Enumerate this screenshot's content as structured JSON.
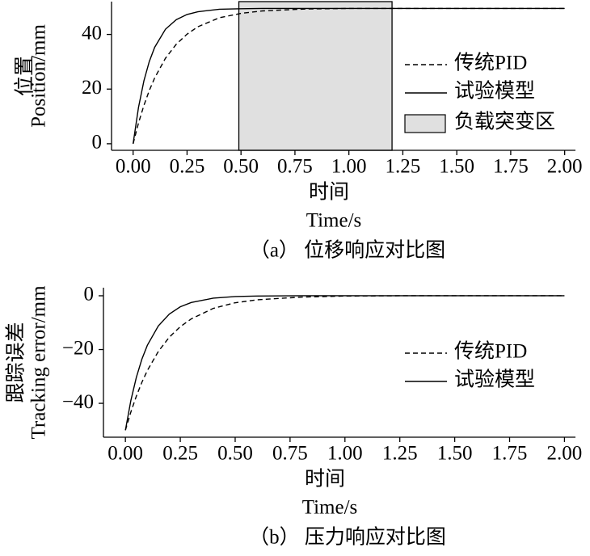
{
  "chart_data": [
    {
      "type": "line",
      "xlabel": [
        "时间",
        "Time/s"
      ],
      "ylabel": [
        "位置",
        "Position/mm"
      ],
      "caption": "（a） 位移响应对比图",
      "x": [
        0,
        0.025,
        0.05,
        0.075,
        0.1,
        0.15,
        0.2,
        0.25,
        0.3,
        0.4,
        0.5,
        0.6,
        0.8,
        1.0,
        1.25,
        1.5,
        1.75,
        2.0
      ],
      "series": [
        {
          "name": "传统PID",
          "color": "#000000",
          "dash": true,
          "values": [
            0,
            7.6,
            14.0,
            19.5,
            24.1,
            31.3,
            36.4,
            40.1,
            42.8,
            46.1,
            47.7,
            48.6,
            49.3,
            49.5,
            49.5,
            49.5,
            49.5,
            49.5
          ]
        },
        {
          "name": "试验模型",
          "color": "#000000",
          "dash": false,
          "values": [
            0,
            13.3,
            23.0,
            30.1,
            35.3,
            41.9,
            45.4,
            47.3,
            48.3,
            49.2,
            49.4,
            49.5,
            49.5,
            49.5,
            49.5,
            49.5,
            49.5,
            49.5
          ]
        }
      ],
      "shaded_region": {
        "name": "负载突变区",
        "color": "#e0e0e0",
        "x": [
          0.49,
          1.2
        ]
      },
      "xlim": [
        -0.1,
        2.05
      ],
      "ylim": [
        -2.4,
        52
      ],
      "xticks": [
        {
          "value": 0,
          "label": "0.00"
        },
        {
          "value": 0.25,
          "label": "0.25"
        },
        {
          "value": 0.5,
          "label": "0.50"
        },
        {
          "value": 0.75,
          "label": "0.75"
        },
        {
          "value": 1.0,
          "label": "1.00"
        },
        {
          "value": 1.25,
          "label": "1.25"
        },
        {
          "value": 1.5,
          "label": "1.50"
        },
        {
          "value": 1.75,
          "label": "1.75"
        },
        {
          "value": 2.0,
          "label": "2.00"
        }
      ],
      "yticks": [
        0,
        20,
        40
      ],
      "grid": false,
      "legend": "right"
    },
    {
      "type": "line",
      "xlabel": [
        "时间",
        "Time/s"
      ],
      "ylabel": [
        "跟踪误差",
        "Tracking error/mm"
      ],
      "caption": "（b） 压力响应对比图",
      "x": [
        0,
        0.025,
        0.05,
        0.075,
        0.1,
        0.15,
        0.2,
        0.25,
        0.3,
        0.4,
        0.5,
        0.6,
        0.8,
        1.0,
        1.25,
        1.5,
        1.75,
        2.0
      ],
      "series": [
        {
          "name": "传统PID",
          "color": "#000000",
          "dash": true,
          "values": [
            -50,
            -43.2,
            -37.3,
            -32.2,
            -27.8,
            -20.7,
            -15.4,
            -11.5,
            -8.6,
            -4.7,
            -2.6,
            -1.5,
            -0.5,
            -0.1,
            0,
            0,
            0,
            0
          ]
        },
        {
          "name": "试验模型",
          "color": "#000000",
          "dash": false,
          "values": [
            -50,
            -38.9,
            -30.3,
            -23.6,
            -18.4,
            -11.2,
            -6.8,
            -4.1,
            -2.5,
            -0.9,
            -0.3,
            -0.1,
            0,
            0,
            0,
            0,
            0,
            0
          ]
        }
      ],
      "xlim": [
        -0.1,
        2.05
      ],
      "ylim": [
        -52.6,
        3
      ],
      "xticks": [
        {
          "value": 0,
          "label": "0.00"
        },
        {
          "value": 0.25,
          "label": "0.25"
        },
        {
          "value": 0.5,
          "label": "0.50"
        },
        {
          "value": 0.75,
          "label": "0.75"
        },
        {
          "value": 1.0,
          "label": "1.00"
        },
        {
          "value": 1.25,
          "label": "1.25"
        },
        {
          "value": 1.5,
          "label": "1.50"
        },
        {
          "value": 1.75,
          "label": "1.75"
        },
        {
          "value": 2.0,
          "label": "2.00"
        }
      ],
      "yticks": [
        0,
        {
          "value": -20,
          "label": "−20"
        },
        {
          "value": -40,
          "label": "−40"
        }
      ],
      "grid": false,
      "legend": "right"
    }
  ]
}
